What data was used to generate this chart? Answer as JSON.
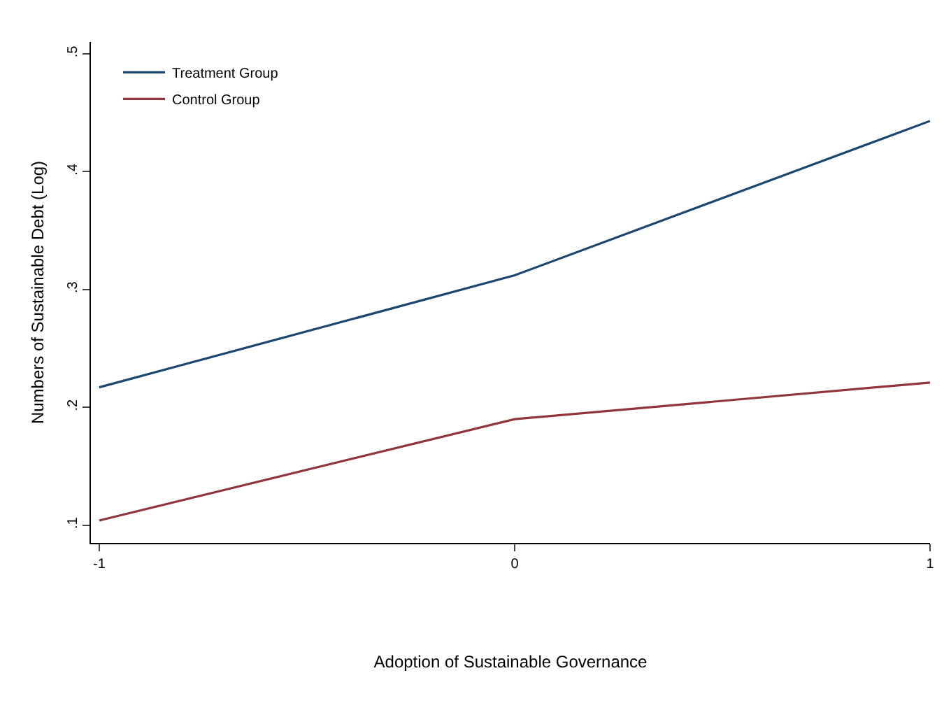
{
  "chart_data": {
    "type": "line",
    "xlabel": "Adoption of Sustainable Governance",
    "ylabel": "Numbers of Sustainable Debt (Log)",
    "x": [
      -1,
      0,
      1
    ],
    "series": [
      {
        "name": "Treatment Group",
        "color": "#1a476f",
        "values": [
          0.217,
          0.312,
          0.443
        ]
      },
      {
        "name": "Control Group",
        "color": "#90353b",
        "values": [
          0.104,
          0.19,
          0.221
        ]
      }
    ],
    "xlim": [
      -1.02,
      1
    ],
    "xticks": [
      -1,
      0,
      1
    ],
    "ylim": [
      0.085,
      0.51
    ],
    "yticks": [
      {
        "value": 0.1,
        "label": ".1"
      },
      {
        "value": 0.2,
        "label": ".2"
      },
      {
        "value": 0.3,
        "label": ".3"
      },
      {
        "value": 0.4,
        "label": ".4"
      },
      {
        "value": 0.5,
        "label": ".5"
      }
    ],
    "grid": false,
    "legend": "top left",
    "marker": "none",
    "line_style": "solid"
  }
}
